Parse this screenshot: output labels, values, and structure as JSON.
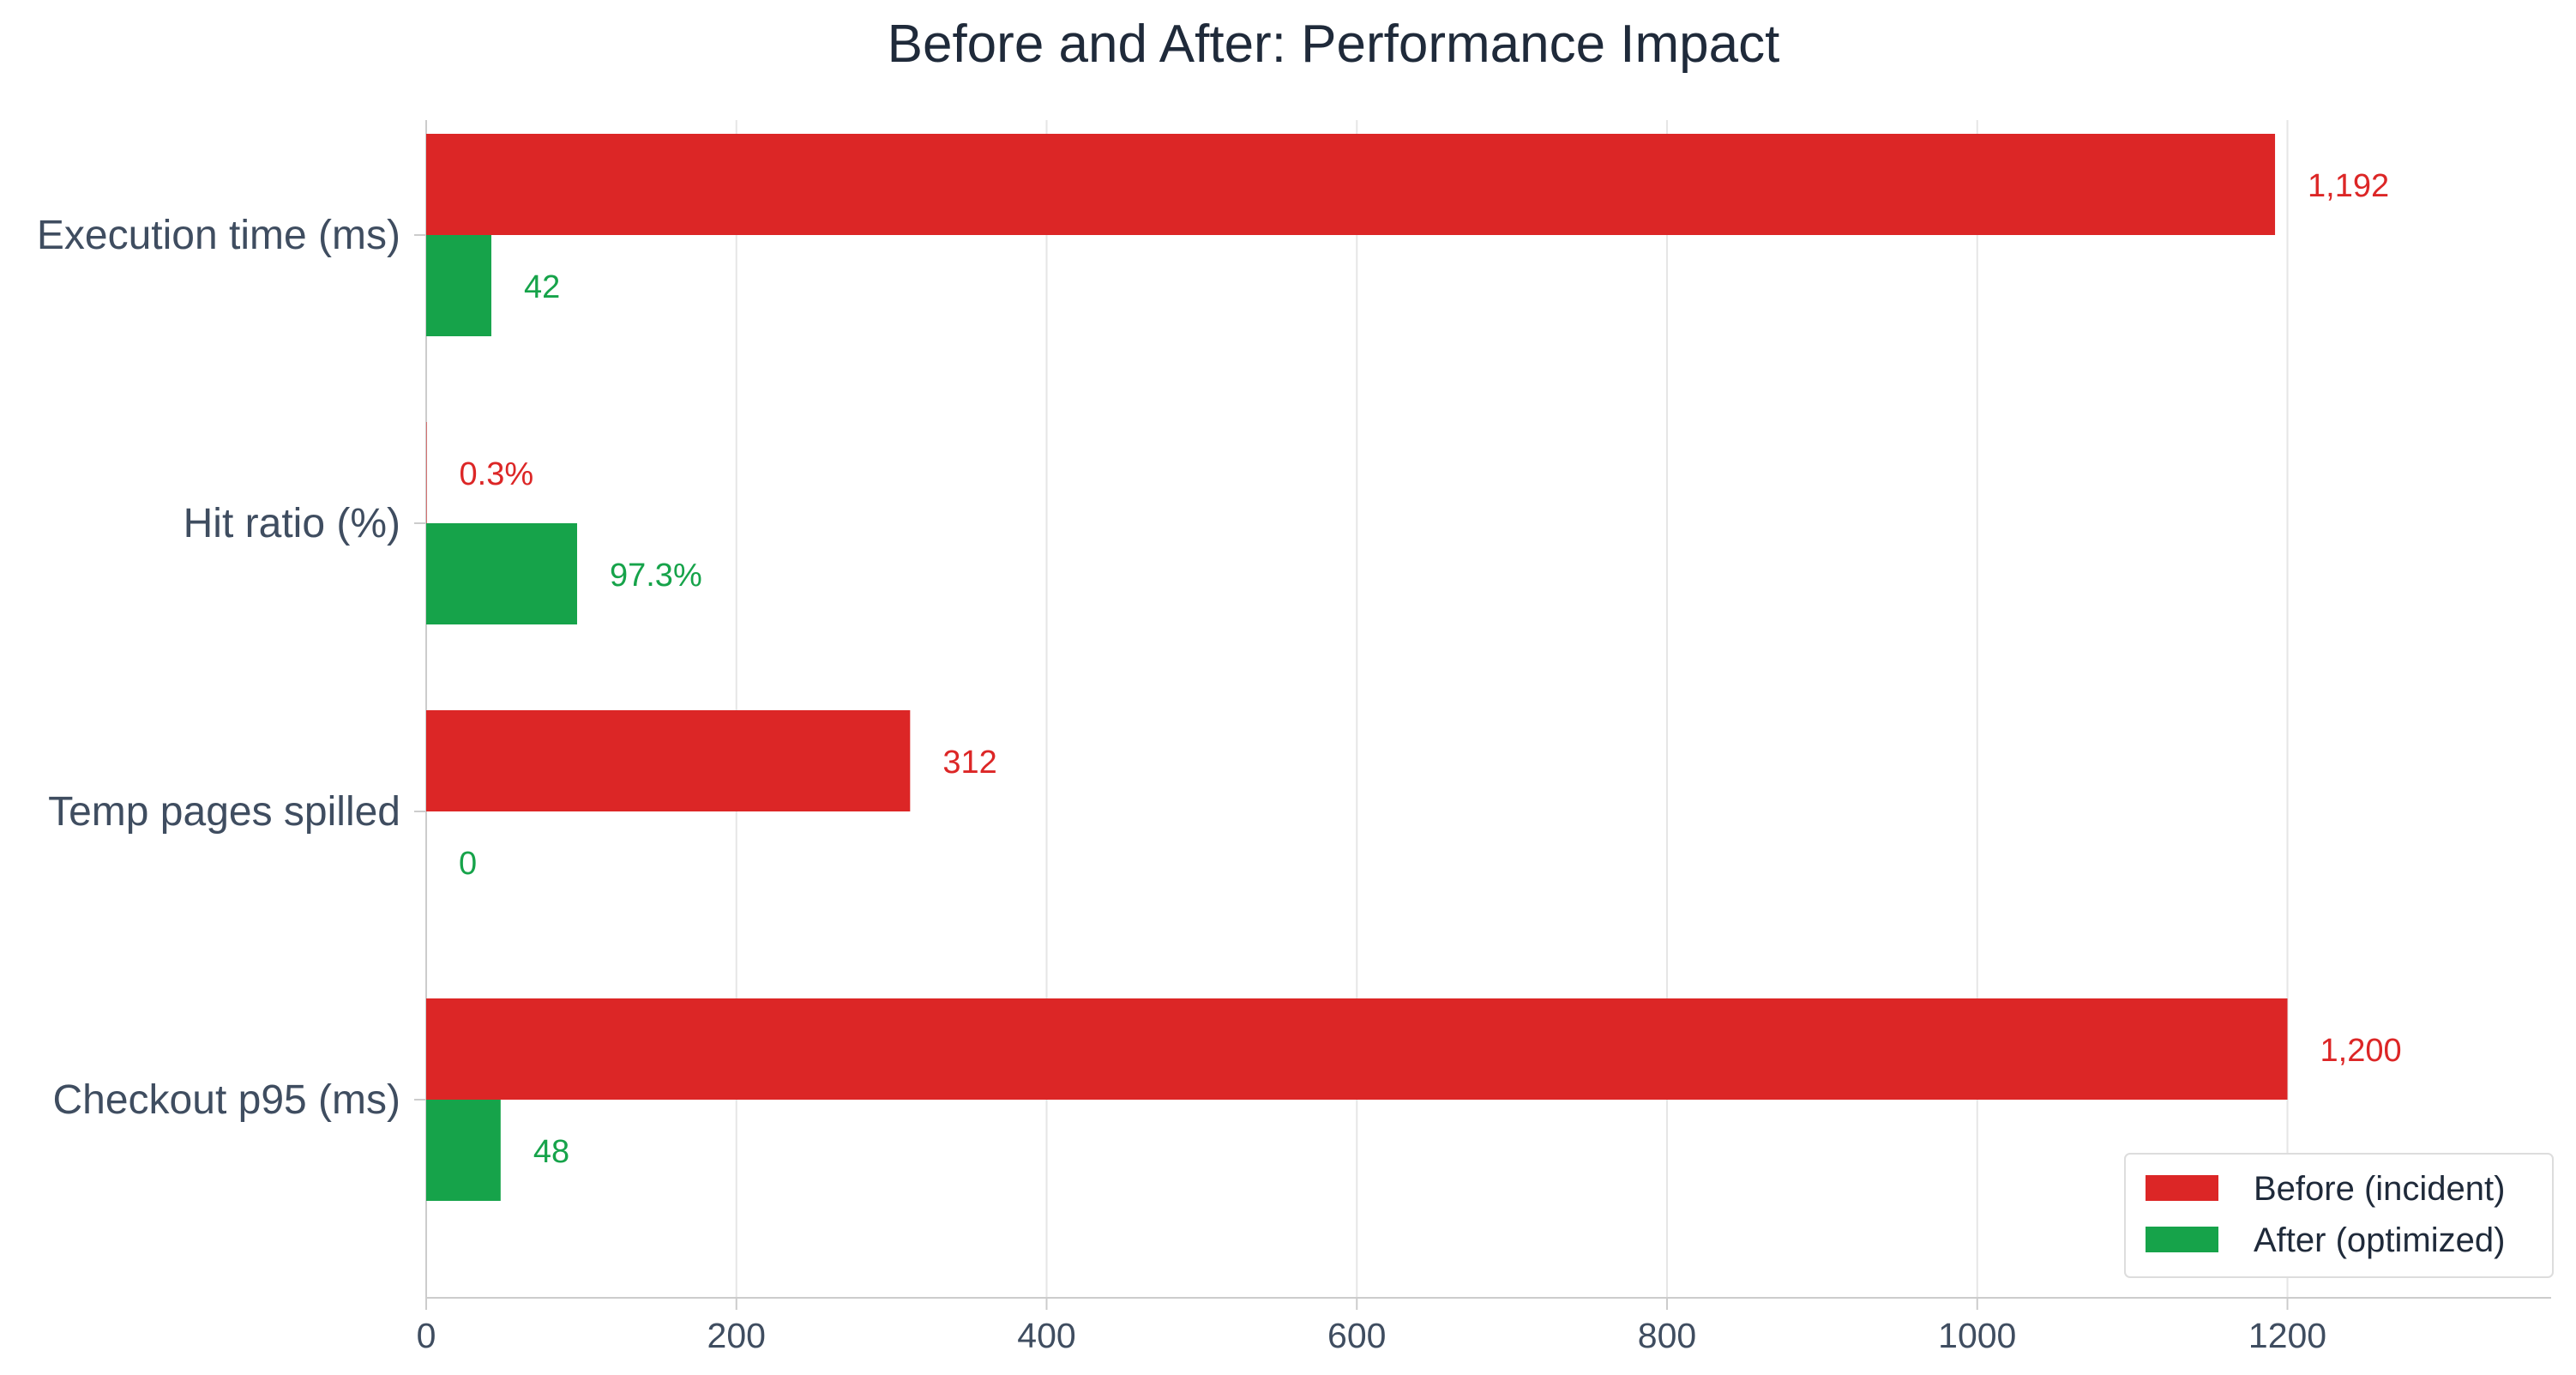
{
  "chart_data": {
    "type": "bar",
    "orientation": "horizontal",
    "title": "Before and After: Performance Impact",
    "xlabel": "",
    "ylabel": "",
    "categories": [
      "Execution time (ms)",
      "Hit ratio (%)",
      "Temp pages spilled",
      "Checkout p95 (ms)"
    ],
    "series": [
      {
        "name": "Before (incident)",
        "color": "#dc2626",
        "values": [
          1192,
          0.3,
          312,
          1200
        ],
        "labels": [
          "1,192",
          "0.3%",
          "312",
          "1,200"
        ]
      },
      {
        "name": "After (optimized)",
        "color": "#16a34a",
        "values": [
          42,
          97.3,
          0,
          48
        ],
        "labels": [
          "42",
          "97.3%",
          "0",
          "48"
        ]
      }
    ],
    "xlim": [
      0,
      1370
    ],
    "xticks": [
      0,
      200,
      400,
      600,
      800,
      1000,
      1200
    ],
    "grid": true,
    "legend_position": "bottom-right"
  }
}
